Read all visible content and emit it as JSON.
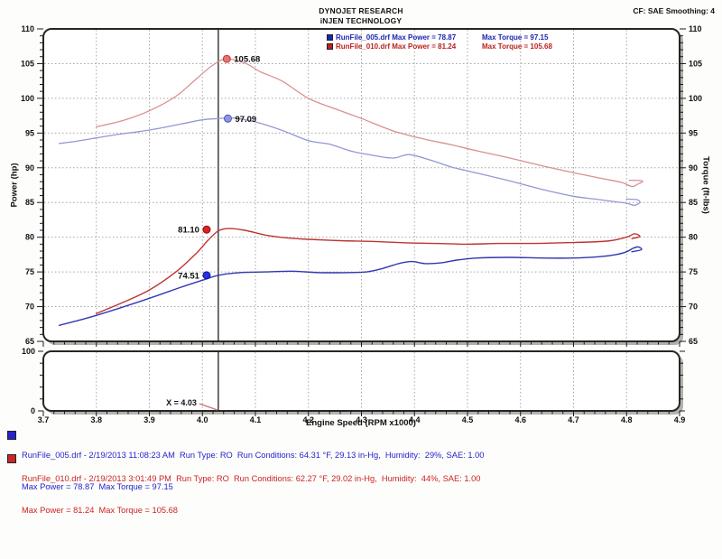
{
  "header": {
    "title": "DYNOJET RESEARCH",
    "subtitle": "iNJEN TECHNOLOGY",
    "correction": "CF: SAE  Smoothing: 4"
  },
  "chart_legend": {
    "rows": [
      {
        "color": "#1c24b4",
        "main": "RunFile_005.drf Max Power = 78.87",
        "torque": "Max Torque = 97.15"
      },
      {
        "color": "#bb2020",
        "main": "RunFile_010.drf Max Power = 81.24",
        "torque": "Max Torque = 105.68"
      }
    ]
  },
  "chart_data": {
    "type": "line",
    "x_axis": {
      "label": "Engine Speed (RPM x1000)",
      "min": 3.7,
      "max": 4.9,
      "major_step": 0.1,
      "minor_step": 0.02,
      "tick_labels": [
        "3.7",
        "3.8",
        "3.9",
        "4.0",
        "4.1",
        "4.2",
        "4.3",
        "4.4",
        "4.5",
        "4.6",
        "4.7",
        "4.8",
        "4.9"
      ]
    },
    "left_axis": {
      "label": "Power (hp)",
      "min": 65,
      "max": 110,
      "major_step": 5,
      "minor_step": 1
    },
    "right_axis": {
      "label": "Torque (ft-lbs)",
      "min": 65,
      "max": 110,
      "major_step": 5,
      "minor_step": 1
    },
    "lower_panel": {
      "y_min": 0,
      "y_max": 100,
      "minor_step": 20,
      "labeled_ticks": [
        100,
        0
      ]
    },
    "cursor": {
      "x": 4.03,
      "label": "X = 4.03"
    },
    "grid": true,
    "series": [
      {
        "name": "runfile-010-torque",
        "run": "RunFile_010.drf",
        "unit": "ft-lbs",
        "color": "#d99090",
        "width": 1.3,
        "points": [
          [
            3.8,
            95.9
          ],
          [
            3.85,
            96.8
          ],
          [
            3.9,
            98.2
          ],
          [
            3.95,
            100.3
          ],
          [
            3.99,
            102.9
          ],
          [
            4.02,
            104.8
          ],
          [
            4.045,
            105.68
          ],
          [
            4.08,
            105.1
          ],
          [
            4.11,
            103.8
          ],
          [
            4.15,
            102.5
          ],
          [
            4.2,
            100.0
          ],
          [
            4.25,
            98.5
          ],
          [
            4.3,
            97.1
          ],
          [
            4.36,
            95.3
          ],
          [
            4.42,
            94.1
          ],
          [
            4.47,
            93.3
          ],
          [
            4.52,
            92.4
          ],
          [
            4.58,
            91.4
          ],
          [
            4.64,
            90.3
          ],
          [
            4.7,
            89.3
          ],
          [
            4.75,
            88.5
          ],
          [
            4.79,
            87.9
          ],
          [
            4.81,
            87.3
          ],
          [
            4.82,
            87.6
          ],
          [
            4.83,
            88.1
          ],
          [
            4.805,
            88.2
          ]
        ]
      },
      {
        "name": "runfile-005-torque",
        "run": "RunFile_005.drf",
        "unit": "ft-lbs",
        "color": "#9397d6",
        "width": 1.3,
        "points": [
          [
            3.73,
            93.5
          ],
          [
            3.76,
            93.8
          ],
          [
            3.8,
            94.3
          ],
          [
            3.84,
            94.8
          ],
          [
            3.88,
            95.2
          ],
          [
            3.92,
            95.7
          ],
          [
            3.96,
            96.3
          ],
          [
            4.0,
            96.9
          ],
          [
            4.03,
            97.09
          ],
          [
            4.06,
            97.15
          ],
          [
            4.1,
            96.6
          ],
          [
            4.15,
            95.4
          ],
          [
            4.2,
            93.9
          ],
          [
            4.24,
            93.4
          ],
          [
            4.28,
            92.4
          ],
          [
            4.32,
            91.8
          ],
          [
            4.36,
            91.4
          ],
          [
            4.39,
            91.9
          ],
          [
            4.43,
            91.1
          ],
          [
            4.47,
            90.1
          ],
          [
            4.52,
            89.2
          ],
          [
            4.58,
            88.1
          ],
          [
            4.64,
            86.9
          ],
          [
            4.7,
            85.9
          ],
          [
            4.74,
            85.5
          ],
          [
            4.78,
            85.1
          ],
          [
            4.8,
            84.9
          ],
          [
            4.815,
            84.6
          ],
          [
            4.825,
            85.0
          ],
          [
            4.82,
            85.4
          ],
          [
            4.8,
            85.5
          ]
        ]
      },
      {
        "name": "runfile-010-power",
        "run": "RunFile_010.drf",
        "unit": "hp",
        "color": "#bf3434",
        "width": 1.4,
        "points": [
          [
            3.8,
            69.0
          ],
          [
            3.85,
            70.6
          ],
          [
            3.9,
            72.4
          ],
          [
            3.95,
            75.0
          ],
          [
            3.99,
            77.8
          ],
          [
            4.01,
            79.5
          ],
          [
            4.03,
            80.9
          ],
          [
            4.05,
            81.24
          ],
          [
            4.08,
            81.0
          ],
          [
            4.12,
            80.3
          ],
          [
            4.16,
            79.9
          ],
          [
            4.2,
            79.7
          ],
          [
            4.26,
            79.5
          ],
          [
            4.32,
            79.4
          ],
          [
            4.38,
            79.2
          ],
          [
            4.44,
            79.1
          ],
          [
            4.5,
            79.0
          ],
          [
            4.56,
            79.1
          ],
          [
            4.62,
            79.1
          ],
          [
            4.68,
            79.2
          ],
          [
            4.73,
            79.3
          ],
          [
            4.77,
            79.5
          ],
          [
            4.8,
            80.0
          ],
          [
            4.815,
            80.5
          ],
          [
            4.825,
            80.1
          ],
          [
            4.81,
            79.8
          ]
        ]
      },
      {
        "name": "runfile-005-power",
        "run": "RunFile_005.drf",
        "unit": "hp",
        "color": "#3038b2",
        "width": 1.4,
        "points": [
          [
            3.73,
            67.3
          ],
          [
            3.78,
            68.3
          ],
          [
            3.84,
            69.7
          ],
          [
            3.9,
            71.2
          ],
          [
            3.96,
            72.8
          ],
          [
            4.008,
            74.0
          ],
          [
            4.03,
            74.51
          ],
          [
            4.07,
            74.9
          ],
          [
            4.12,
            75.0
          ],
          [
            4.17,
            75.1
          ],
          [
            4.22,
            74.9
          ],
          [
            4.27,
            74.9
          ],
          [
            4.31,
            75.0
          ],
          [
            4.34,
            75.5
          ],
          [
            4.37,
            76.2
          ],
          [
            4.395,
            76.5
          ],
          [
            4.42,
            76.2
          ],
          [
            4.45,
            76.3
          ],
          [
            4.48,
            76.7
          ],
          [
            4.52,
            77.0
          ],
          [
            4.58,
            77.1
          ],
          [
            4.64,
            77.0
          ],
          [
            4.7,
            77.0
          ],
          [
            4.75,
            77.2
          ],
          [
            4.78,
            77.5
          ],
          [
            4.8,
            77.9
          ],
          [
            4.812,
            78.4
          ],
          [
            4.822,
            78.6
          ],
          [
            4.828,
            78.2
          ],
          [
            4.81,
            77.9
          ]
        ]
      }
    ],
    "markers": [
      {
        "label": "105.68",
        "x": 4.046,
        "y": 105.68,
        "fill": "#e87070",
        "stroke": "#b84040",
        "side": "right"
      },
      {
        "label": "97.09",
        "x": 4.048,
        "y": 97.09,
        "fill": "#8e96e2",
        "stroke": "#5058b8",
        "side": "right"
      },
      {
        "label": "81.10",
        "x": 4.008,
        "y": 81.1,
        "fill": "#e02020",
        "stroke": "#8c1010",
        "side": "left"
      },
      {
        "label": "74.51",
        "x": 4.008,
        "y": 74.51,
        "fill": "#2830e0",
        "stroke": "#101090",
        "side": "left"
      }
    ],
    "colors": {
      "grid": "#a5a5a5",
      "frame": "#262626",
      "shadow": "#b3b1ad",
      "cursor": "#4a4a4a",
      "callout": "#cc7070",
      "tick_text": "#111111"
    }
  },
  "footer_entries": [
    {
      "color": "#2424cc",
      "line1": "RunFile_005.drf - 2/19/2013 11:08:23 AM  Run Type: RO  Run Conditions: 64.31 °F, 29.13 in-Hg,  Humidity:  29%, SAE: 1.00",
      "line2": "Max Power = 78.87  Max Torque = 97.15"
    },
    {
      "color": "#cc2424",
      "line1": "RunFile_010.drf - 2/19/2013 3:01:49 PM  Run Type: RO  Run Conditions: 62.27 °F, 29.02 in-Hg,  Humidity:  44%, SAE: 1.00",
      "line2": "Max Power = 81.24  Max Torque = 105.68"
    }
  ]
}
